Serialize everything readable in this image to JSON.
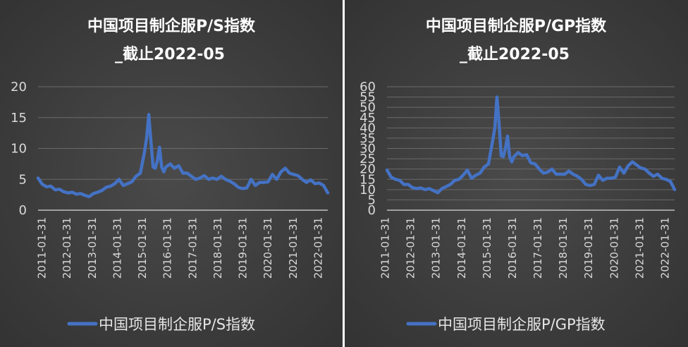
{
  "colors": {
    "series": "#4472c4",
    "background": "#3f3f3f",
    "text": "#ffffff"
  },
  "chart_data": [
    {
      "type": "line",
      "title_line1": "中国项目制企服P/S指数",
      "title_line2": "_截止2022-05",
      "legend": "中国项目制企服P/S指数",
      "legend_position": "bottom",
      "ylim": [
        0,
        20
      ],
      "yticks": [
        "0",
        "5",
        "10",
        "15",
        "20"
      ],
      "grid": true,
      "x_tick_labels": [
        "2011-01-31",
        "2012-01-31",
        "2013-01-31",
        "2014-01-31",
        "2015-01-31",
        "2016-01-31",
        "2017-01-31",
        "2018-01-31",
        "2019-01-31",
        "2020-01-31",
        "2021-01-31",
        "2022-01-31"
      ],
      "series": [
        {
          "name": "中国项目制企服P/S指数",
          "x": [
            "2011-01",
            "2011-03",
            "2011-05",
            "2011-07",
            "2011-09",
            "2011-11",
            "2012-01",
            "2012-03",
            "2012-05",
            "2012-07",
            "2012-09",
            "2012-11",
            "2013-01",
            "2013-03",
            "2013-05",
            "2013-07",
            "2013-09",
            "2013-11",
            "2014-01",
            "2014-03",
            "2014-05",
            "2014-07",
            "2014-09",
            "2014-11",
            "2015-01",
            "2015-03",
            "2015-04",
            "2015-05",
            "2015-06",
            "2015-07",
            "2015-08",
            "2015-09",
            "2015-10",
            "2015-11",
            "2015-12",
            "2016-01",
            "2016-03",
            "2016-05",
            "2016-07",
            "2016-09",
            "2016-11",
            "2017-01",
            "2017-03",
            "2017-05",
            "2017-07",
            "2017-09",
            "2017-11",
            "2018-01",
            "2018-03",
            "2018-05",
            "2018-07",
            "2018-09",
            "2018-11",
            "2019-01",
            "2019-03",
            "2019-05",
            "2019-07",
            "2019-09",
            "2019-11",
            "2020-01",
            "2020-03",
            "2020-05",
            "2020-07",
            "2020-09",
            "2020-11",
            "2021-01",
            "2021-03",
            "2021-05",
            "2021-07",
            "2021-09",
            "2021-11",
            "2022-01",
            "2022-03",
            "2022-05"
          ],
          "values": [
            5.2,
            4.2,
            3.8,
            3.9,
            3.3,
            3.4,
            3.0,
            2.8,
            2.9,
            2.6,
            2.7,
            2.4,
            2.2,
            2.7,
            2.9,
            3.2,
            3.7,
            3.9,
            4.3,
            5.0,
            4.0,
            4.3,
            4.6,
            5.5,
            6.0,
            9.5,
            11.8,
            15.5,
            11.0,
            7.0,
            6.8,
            8.0,
            10.2,
            7.0,
            6.2,
            7.0,
            7.5,
            6.8,
            7.2,
            6.0,
            6.0,
            5.5,
            5.0,
            5.2,
            5.6,
            5.0,
            5.2,
            5.0,
            5.5,
            5.0,
            4.7,
            4.3,
            3.7,
            3.5,
            3.6,
            5.0,
            4.0,
            4.5,
            4.5,
            4.6,
            5.8,
            5.0,
            6.2,
            6.8,
            6.0,
            5.8,
            5.6,
            5.0,
            4.5,
            4.9,
            4.3,
            4.4,
            4.0,
            2.8
          ]
        }
      ]
    },
    {
      "type": "line",
      "title_line1": "中国项目制企服P/GP指数",
      "title_line2": "_截止2022-05",
      "legend": "中国项目制企服P/GP指数",
      "legend_position": "bottom",
      "ylim": [
        0,
        60
      ],
      "yticks": [
        "0",
        "5",
        "10",
        "15",
        "20",
        "25",
        "30",
        "35",
        "40",
        "45",
        "50",
        "55",
        "60"
      ],
      "grid": true,
      "x_tick_labels": [
        "2011-01-31",
        "2012-01-31",
        "2013-01-31",
        "2014-01-31",
        "2015-01-31",
        "2016-01-31",
        "2017-01-31",
        "2018-01-31",
        "2019-01-31",
        "2020-01-31",
        "2021-01-31",
        "2022-01-31"
      ],
      "series": [
        {
          "name": "中国项目制企服P/GP指数",
          "x": [
            "2011-01",
            "2011-03",
            "2011-05",
            "2011-07",
            "2011-09",
            "2011-11",
            "2012-01",
            "2012-03",
            "2012-05",
            "2012-07",
            "2012-09",
            "2012-11",
            "2013-01",
            "2013-03",
            "2013-05",
            "2013-07",
            "2013-09",
            "2013-11",
            "2014-01",
            "2014-03",
            "2014-05",
            "2014-07",
            "2014-09",
            "2014-11",
            "2015-01",
            "2015-03",
            "2015-04",
            "2015-05",
            "2015-06",
            "2015-07",
            "2015-08",
            "2015-09",
            "2015-10",
            "2015-11",
            "2015-12",
            "2016-01",
            "2016-03",
            "2016-05",
            "2016-07",
            "2016-09",
            "2016-11",
            "2017-01",
            "2017-03",
            "2017-05",
            "2017-07",
            "2017-09",
            "2017-11",
            "2018-01",
            "2018-03",
            "2018-05",
            "2018-07",
            "2018-09",
            "2018-11",
            "2019-01",
            "2019-03",
            "2019-05",
            "2019-07",
            "2019-09",
            "2019-11",
            "2020-01",
            "2020-03",
            "2020-05",
            "2020-07",
            "2020-09",
            "2020-11",
            "2021-01",
            "2021-03",
            "2021-05",
            "2021-07",
            "2021-09",
            "2021-11",
            "2022-01",
            "2022-03",
            "2022-05"
          ],
          "values": [
            19.5,
            16.0,
            15.0,
            14.5,
            12.5,
            12.5,
            11.0,
            10.5,
            10.8,
            10.0,
            10.5,
            9.5,
            8.5,
            10.5,
            11.5,
            12.5,
            14.5,
            15.0,
            17.0,
            19.5,
            15.5,
            17.0,
            18.0,
            21.0,
            22.5,
            34.0,
            40.0,
            55.0,
            42.0,
            26.5,
            26.0,
            30.0,
            36.0,
            26.0,
            23.5,
            26.0,
            28.0,
            26.5,
            27.0,
            23.0,
            22.5,
            20.0,
            18.0,
            18.5,
            20.0,
            17.5,
            17.5,
            17.5,
            19.0,
            17.5,
            16.5,
            15.0,
            12.5,
            12.0,
            12.5,
            17.0,
            14.5,
            15.5,
            15.5,
            16.0,
            21.0,
            18.0,
            21.5,
            23.5,
            22.0,
            20.5,
            20.0,
            18.0,
            16.5,
            17.5,
            15.5,
            15.0,
            14.0,
            10.0
          ]
        }
      ]
    }
  ]
}
